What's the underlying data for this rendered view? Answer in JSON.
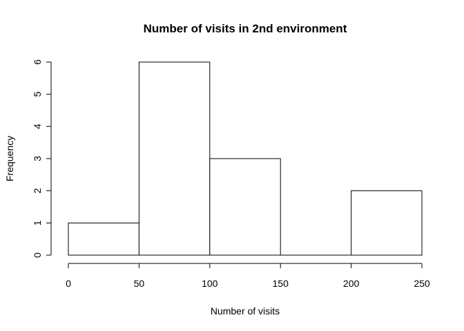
{
  "chart_data": {
    "type": "bar",
    "title": "Number of visits in 2nd environment",
    "xlabel": "Number of visits",
    "ylabel": "Frequency",
    "bins": [
      {
        "start": 0,
        "end": 50,
        "count": 1
      },
      {
        "start": 50,
        "end": 100,
        "count": 6
      },
      {
        "start": 100,
        "end": 150,
        "count": 3
      },
      {
        "start": 150,
        "end": 200,
        "count": 0
      },
      {
        "start": 200,
        "end": 250,
        "count": 2
      }
    ],
    "xlim": [
      0,
      250
    ],
    "ylim": [
      0,
      6
    ],
    "x_ticks": [
      "0",
      "50",
      "100",
      "150",
      "200",
      "250"
    ],
    "y_ticks": [
      "0",
      "1",
      "2",
      "3",
      "4",
      "5",
      "6"
    ],
    "grid": false,
    "bar_fill": "#ffffff",
    "bar_stroke": "#000000"
  }
}
